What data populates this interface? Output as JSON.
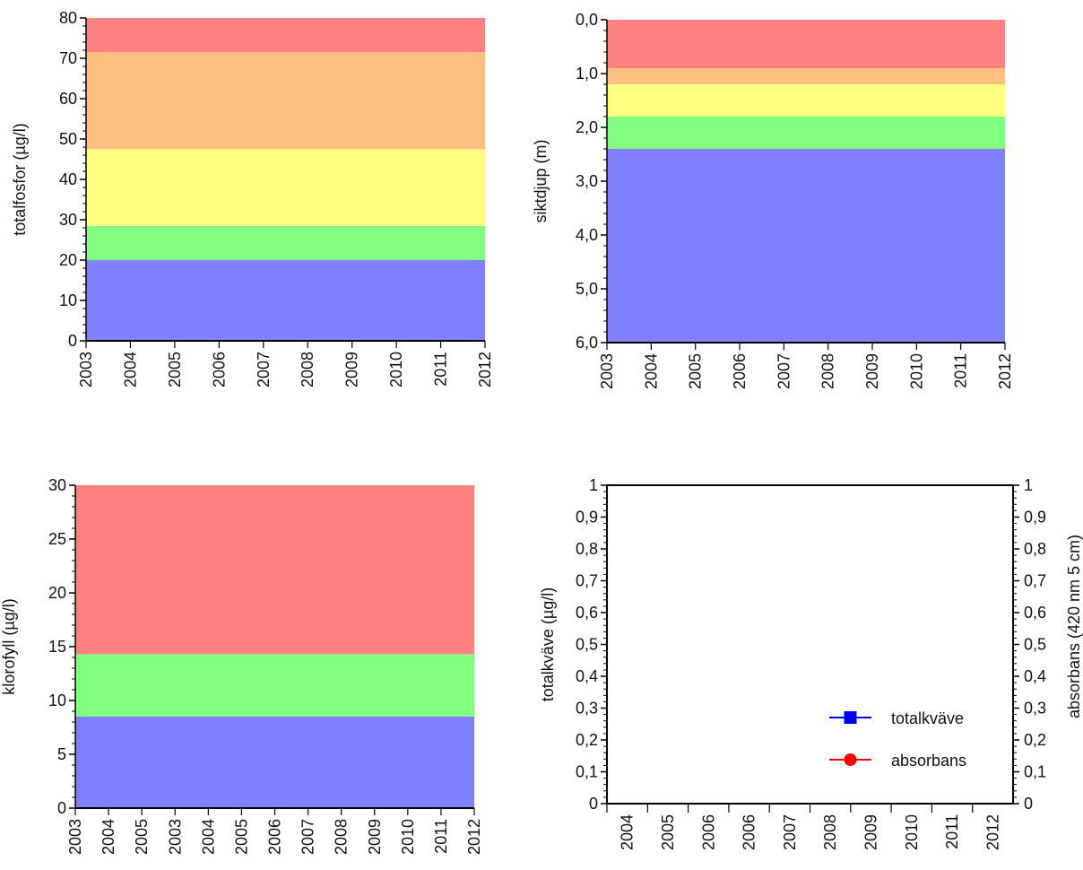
{
  "chart_data": [
    {
      "type": "area",
      "ylabel": "totalfosfor (µg/l)",
      "xlabel": "",
      "x_ticks": [
        "2003",
        "2004",
        "2005",
        "2006",
        "2007",
        "2008",
        "2009",
        "2010",
        "2011",
        "2012"
      ],
      "y_ticks": [
        "0",
        "10",
        "20",
        "30",
        "40",
        "50",
        "60",
        "70",
        "80"
      ],
      "ylim": [
        0,
        80
      ],
      "y_inverted": false,
      "bands": [
        {
          "from": 0,
          "to": 20,
          "color": "#8080ff"
        },
        {
          "from": 20,
          "to": 28.5,
          "color": "#80ff80"
        },
        {
          "from": 28.5,
          "to": 47.5,
          "color": "#ffff80"
        },
        {
          "from": 47.5,
          "to": 71.5,
          "color": "#ffbf80"
        },
        {
          "from": 71.5,
          "to": 80,
          "color": "#ff8080"
        }
      ]
    },
    {
      "type": "area",
      "ylabel": "siktdjup (m)",
      "xlabel": "",
      "x_ticks": [
        "2003",
        "2004",
        "2005",
        "2006",
        "2007",
        "2008",
        "2009",
        "2010",
        "2011",
        "2012"
      ],
      "y_ticks": [
        "0,0",
        "1,0",
        "2,0",
        "3,0",
        "4,0",
        "5,0",
        "6,0"
      ],
      "ylim": [
        0,
        6
      ],
      "y_inverted": true,
      "bands": [
        {
          "from": 0,
          "to": 0.9,
          "color": "#ff8080"
        },
        {
          "from": 0.9,
          "to": 1.2,
          "color": "#ffbf80"
        },
        {
          "from": 1.2,
          "to": 1.8,
          "color": "#ffff80"
        },
        {
          "from": 1.8,
          "to": 2.4,
          "color": "#80ff80"
        },
        {
          "from": 2.4,
          "to": 6,
          "color": "#8080ff"
        }
      ]
    },
    {
      "type": "area",
      "ylabel": "klorofyll (µg/l)",
      "xlabel": "",
      "x_ticks": [
        "2003",
        "2004",
        "2005",
        "2003",
        "2004",
        "2005",
        "2006",
        "2007",
        "2008",
        "2009",
        "2010",
        "2011",
        "2012"
      ],
      "y_ticks": [
        "0",
        "5",
        "10",
        "15",
        "20",
        "25",
        "30"
      ],
      "ylim": [
        0,
        30
      ],
      "y_inverted": false,
      "bands": [
        {
          "from": 0,
          "to": 8.5,
          "color": "#8080ff"
        },
        {
          "from": 8.5,
          "to": 14.3,
          "color": "#80ff80"
        },
        {
          "from": 14.3,
          "to": 30,
          "color": "#ff8080"
        }
      ]
    },
    {
      "type": "line",
      "ylabel": "totalkväve (µg/l)",
      "ylabel_right": "absorbans (420 nm 5 cm)",
      "xlabel": "",
      "x_ticks": [
        "2004",
        "2005",
        "2006",
        "2006",
        "2007",
        "2008",
        "2009",
        "2010",
        "2011",
        "2012"
      ],
      "y_ticks": [
        "0",
        "0,1",
        "0,2",
        "0,3",
        "0,4",
        "0,5",
        "0,6",
        "0,7",
        "0,8",
        "0,9",
        "1"
      ],
      "ylim": [
        0,
        1
      ],
      "legend_position": "bottom-right",
      "series": [
        {
          "name": "totalkväve",
          "marker": "square",
          "color": "#0000ff",
          "values": []
        },
        {
          "name": "absorbans",
          "marker": "circle",
          "color": "#ff0000",
          "values": []
        }
      ]
    }
  ]
}
